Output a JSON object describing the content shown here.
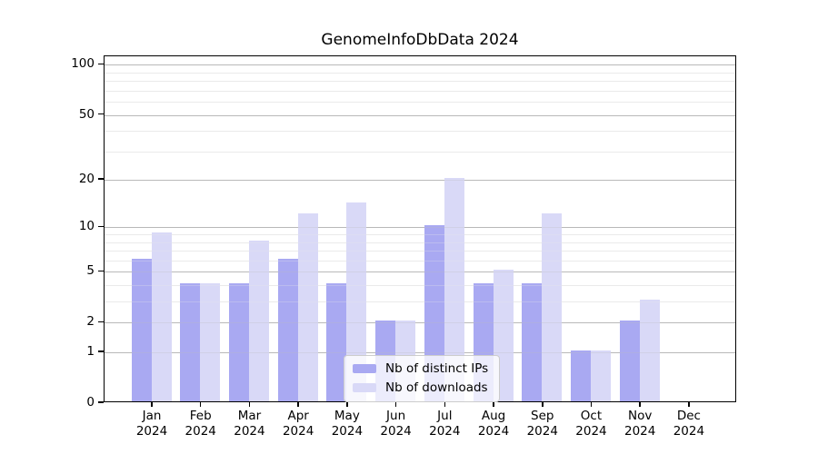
{
  "title": "GenomeInfoDbData 2024",
  "chart_data": {
    "type": "bar",
    "title": "GenomeInfoDbData 2024",
    "scale": "log10(1+x)",
    "grid": true,
    "categories": [
      "Jan",
      "Feb",
      "Mar",
      "Apr",
      "May",
      "Jun",
      "Jul",
      "Aug",
      "Sep",
      "Oct",
      "Nov",
      "Dec"
    ],
    "category_year": "2024",
    "series": [
      {
        "name": "Nb of distinct IPs",
        "color": "#a9a9f2",
        "values": [
          6,
          4,
          4,
          6,
          4,
          2,
          10,
          4,
          4,
          1,
          2,
          0
        ]
      },
      {
        "name": "Nb of downloads",
        "color": "#d9d9f7",
        "values": [
          9,
          4,
          8,
          12,
          14,
          2,
          20,
          5,
          12,
          1,
          3,
          0
        ]
      }
    ],
    "y_axis": {
      "tick_labels": [
        "100",
        "50",
        "20",
        "10",
        "5",
        "2",
        "1",
        "0"
      ],
      "tick_values": [
        100,
        50,
        20,
        10,
        5,
        2,
        1,
        0
      ],
      "minor_grid_values": [
        3,
        4,
        6,
        7,
        8,
        9,
        30,
        40,
        60,
        70,
        80,
        90
      ],
      "ylim": [
        0,
        113
      ]
    },
    "legend": {
      "position": "bottom-center",
      "entries": [
        "Nb of distinct IPs",
        "Nb of downloads"
      ]
    },
    "colors": {
      "major_grid": "#b9b9b9",
      "minor_grid": "#ebebeb",
      "frame": "#000000",
      "background": "#ffffff"
    }
  }
}
